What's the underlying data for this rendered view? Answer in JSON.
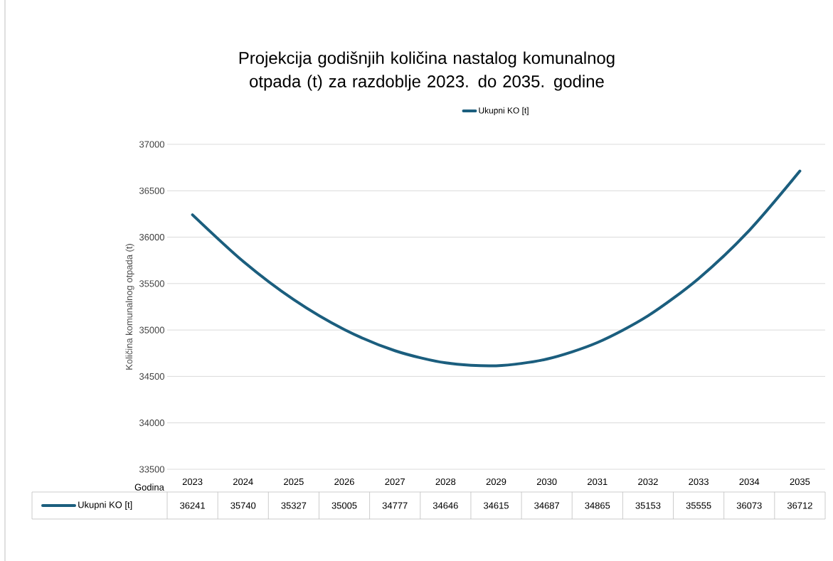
{
  "chart_data": {
    "type": "line",
    "title": "Projekcija godišnjih količina nastalog komunalnog otpada (t) za razdoblje 2023. do 2035. godine",
    "xlabel": "Godina",
    "ylabel": "Količina komunalnog otpada (t)",
    "categories": [
      "2023",
      "2024",
      "2025",
      "2026",
      "2027",
      "2028",
      "2029",
      "2030",
      "2031",
      "2032",
      "2033",
      "2034",
      "2035"
    ],
    "series": [
      {
        "name": "Ukupni KO [t]",
        "color": "#1b5e7e",
        "values": [
          36241,
          35740,
          35327,
          35005,
          34777,
          34646,
          34615,
          34687,
          34865,
          35153,
          35555,
          36073,
          36712
        ]
      }
    ],
    "ylim": [
      33500,
      37000
    ],
    "yticks": [
      33500,
      34000,
      34500,
      35000,
      35500,
      36000,
      36500,
      37000
    ],
    "grid": true,
    "legend": "top",
    "data_labels": true,
    "marker": "none",
    "line_style": "solid"
  }
}
